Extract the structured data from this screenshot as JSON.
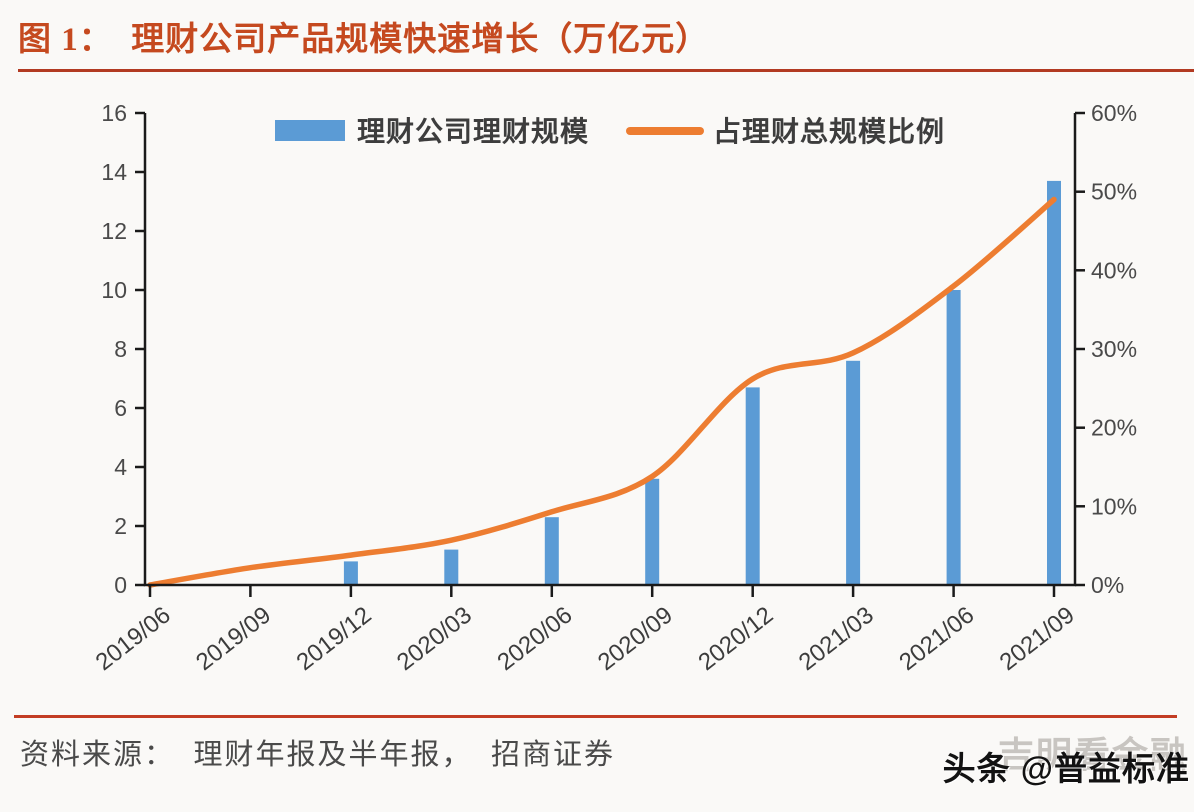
{
  "page": {
    "title": "图 1：  理财公司产品规模快速增长（万亿元）",
    "source_note": "资料来源：  理财年报及半年报，  招商证券",
    "watermark_faint": "吉明看金融",
    "watermark_main": "头条 @普益标准"
  },
  "colors": {
    "title_red": "#C5491F",
    "title_rule_red": "#B23A22",
    "footer_rule_red": "#C33D24",
    "bar_blue": "#5B9BD5",
    "line_orange": "#ED7D31",
    "axis_black": "#1A1A1A",
    "tick_label_gray": "#4A4A4A",
    "background": "#FAF9F7"
  },
  "chart_data": {
    "type": "bar+line",
    "title": "理财公司产品规模快速增长（万亿元）",
    "categories": [
      "2019/06",
      "2019/09",
      "2019/12",
      "2020/03",
      "2020/06",
      "2020/09",
      "2020/12",
      "2021/03",
      "2021/06",
      "2021/09"
    ],
    "series": [
      {
        "name": "理财公司理财规模",
        "type": "bar",
        "axis": "left",
        "color": "#5B9BD5",
        "values": [
          0,
          0,
          0.8,
          1.2,
          2.3,
          3.6,
          6.7,
          7.6,
          10.0,
          13.7
        ]
      },
      {
        "name": "占理财总规模比例",
        "type": "line",
        "axis": "right",
        "color": "#ED7D31",
        "values": [
          0,
          2.2,
          3.8,
          5.7,
          9.3,
          13.8,
          26.2,
          29.5,
          38.0,
          49.0
        ]
      }
    ],
    "left_axis": {
      "min": 0,
      "max": 16,
      "step": 2,
      "tick_labels": [
        "0",
        "2",
        "4",
        "6",
        "8",
        "10",
        "12",
        "14",
        "16"
      ]
    },
    "right_axis": {
      "min": 0,
      "max": 60,
      "step": 10,
      "tick_labels": [
        "0%",
        "10%",
        "20%",
        "30%",
        "40%",
        "50%",
        "60%"
      ]
    },
    "xlabel": "",
    "ylabel_left": "万亿元",
    "ylabel_right": "%",
    "grid": false,
    "legend_position": "top"
  }
}
